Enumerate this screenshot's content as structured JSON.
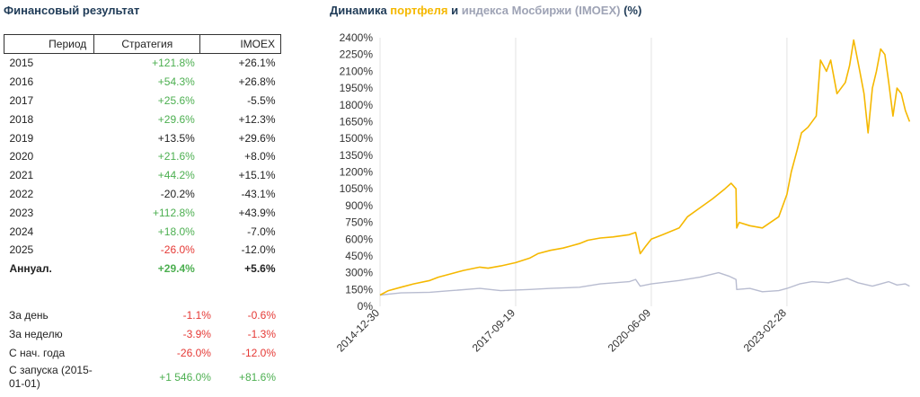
{
  "left_title": "Финансовый результат",
  "table": {
    "headers": [
      "Период",
      "Стратегия",
      "IMOEX"
    ],
    "rows": [
      {
        "period": "2015",
        "strategy": "+121.8%",
        "imoex": "+26.1%",
        "s_color": "pos",
        "i_color": "blk"
      },
      {
        "period": "2016",
        "strategy": "+54.3%",
        "imoex": "+26.8%",
        "s_color": "pos",
        "i_color": "blk"
      },
      {
        "period": "2017",
        "strategy": "+25.6%",
        "imoex": "-5.5%",
        "s_color": "pos",
        "i_color": "blk"
      },
      {
        "period": "2018",
        "strategy": "+29.6%",
        "imoex": "+12.3%",
        "s_color": "pos",
        "i_color": "blk"
      },
      {
        "period": "2019",
        "strategy": "+13.5%",
        "imoex": "+29.6%",
        "s_color": "blk",
        "i_color": "blk"
      },
      {
        "period": "2020",
        "strategy": "+21.6%",
        "imoex": "+8.0%",
        "s_color": "pos",
        "i_color": "blk"
      },
      {
        "period": "2021",
        "strategy": "+44.2%",
        "imoex": "+15.1%",
        "s_color": "pos",
        "i_color": "blk"
      },
      {
        "period": "2022",
        "strategy": "-20.2%",
        "imoex": "-43.1%",
        "s_color": "blk",
        "i_color": "blk"
      },
      {
        "period": "2023",
        "strategy": "+112.8%",
        "imoex": "+43.9%",
        "s_color": "pos",
        "i_color": "blk"
      },
      {
        "period": "2024",
        "strategy": "+18.0%",
        "imoex": "-7.0%",
        "s_color": "pos",
        "i_color": "blk"
      },
      {
        "period": "2025",
        "strategy": "-26.0%",
        "imoex": "-12.0%",
        "s_color": "neg",
        "i_color": "blk"
      },
      {
        "period": "Аннуал.",
        "strategy": "+29.4%",
        "imoex": "+5.6%",
        "s_color": "pos",
        "i_color": "blk",
        "bold": true
      }
    ]
  },
  "stats": [
    {
      "label": "За день",
      "strategy": "-1.1%",
      "imoex": "-0.6%"
    },
    {
      "label": "За неделю",
      "strategy": "-3.9%",
      "imoex": "-1.3%"
    },
    {
      "label": "С нач. года",
      "strategy": "-26.0%",
      "imoex": "-12.0%"
    },
    {
      "label_line1": "С запуска (2015-",
      "label_line2": "01-01)",
      "strategy": "+1 546.0%",
      "imoex": "+81.6%",
      "s_color": "pos",
      "i_color": "pos"
    }
  ],
  "chart_title": {
    "part1": "Динамика ",
    "part2": "портфеля",
    "part3": " и ",
    "part4": "индекса Мосбиржи (IMOEX)",
    "part5": " (%)"
  },
  "chart_data": {
    "type": "line",
    "title": "Динамика портфеля и индекса Мосбиржи (IMOEX) (%)",
    "xlabel": "",
    "ylabel": "",
    "ylim": [
      0,
      2400
    ],
    "y_ticks": [
      "0%",
      "150%",
      "300%",
      "450%",
      "600%",
      "750%",
      "900%",
      "1050%",
      "1200%",
      "1350%",
      "1500%",
      "1650%",
      "1800%",
      "1950%",
      "2100%",
      "2250%",
      "2400%"
    ],
    "x_ticks": [
      "2014-12-30",
      "2017-09-19",
      "2020-06-09",
      "2023-02-28"
    ],
    "x_range": [
      "2014-12-30",
      "2025-09-01"
    ],
    "grid": "vertical",
    "colors": {
      "portfolio": "#f5b800",
      "index": "#b8bcd0"
    },
    "series": [
      {
        "name": "портфеля",
        "points": [
          [
            "2014-12-30",
            100
          ],
          [
            "2015-03-01",
            140
          ],
          [
            "2015-06-01",
            170
          ],
          [
            "2015-09-01",
            200
          ],
          [
            "2015-12-30",
            230
          ],
          [
            "2016-03-01",
            260
          ],
          [
            "2016-06-01",
            290
          ],
          [
            "2016-09-01",
            320
          ],
          [
            "2016-12-30",
            350
          ],
          [
            "2017-03-01",
            340
          ],
          [
            "2017-06-01",
            360
          ],
          [
            "2017-09-19",
            390
          ],
          [
            "2017-12-30",
            430
          ],
          [
            "2018-03-01",
            470
          ],
          [
            "2018-06-01",
            500
          ],
          [
            "2018-09-01",
            520
          ],
          [
            "2018-12-30",
            560
          ],
          [
            "2019-03-01",
            590
          ],
          [
            "2019-06-01",
            610
          ],
          [
            "2019-09-01",
            620
          ],
          [
            "2019-12-30",
            640
          ],
          [
            "2020-02-15",
            660
          ],
          [
            "2020-03-20",
            470
          ],
          [
            "2020-05-01",
            540
          ],
          [
            "2020-06-09",
            600
          ],
          [
            "2020-09-01",
            640
          ],
          [
            "2020-12-30",
            700
          ],
          [
            "2021-03-01",
            800
          ],
          [
            "2021-06-01",
            880
          ],
          [
            "2021-09-01",
            960
          ],
          [
            "2021-12-01",
            1050
          ],
          [
            "2022-01-15",
            1100
          ],
          [
            "2022-02-20",
            1050
          ],
          [
            "2022-02-25",
            700
          ],
          [
            "2022-03-15",
            750
          ],
          [
            "2022-06-01",
            720
          ],
          [
            "2022-09-01",
            700
          ],
          [
            "2022-12-30",
            800
          ],
          [
            "2023-02-28",
            1000
          ],
          [
            "2023-04-01",
            1200
          ],
          [
            "2023-05-15",
            1400
          ],
          [
            "2023-06-15",
            1550
          ],
          [
            "2023-08-01",
            1600
          ],
          [
            "2023-10-01",
            1700
          ],
          [
            "2023-11-01",
            2200
          ],
          [
            "2023-12-15",
            2100
          ],
          [
            "2024-01-15",
            2200
          ],
          [
            "2024-03-01",
            1900
          ],
          [
            "2024-05-01",
            2000
          ],
          [
            "2024-06-01",
            2150
          ],
          [
            "2024-07-01",
            2380
          ],
          [
            "2024-08-15",
            2100
          ],
          [
            "2024-09-15",
            1900
          ],
          [
            "2024-10-15",
            1550
          ],
          [
            "2024-11-15",
            1950
          ],
          [
            "2024-12-15",
            2100
          ],
          [
            "2025-01-15",
            2300
          ],
          [
            "2025-02-15",
            2250
          ],
          [
            "2025-03-15",
            2000
          ],
          [
            "2025-04-15",
            1700
          ],
          [
            "2025-05-15",
            1950
          ],
          [
            "2025-06-15",
            1900
          ],
          [
            "2025-07-15",
            1750
          ],
          [
            "2025-08-15",
            1650
          ]
        ]
      },
      {
        "name": "индекса Мосбиржи (IMOEX)",
        "points": [
          [
            "2014-12-30",
            100
          ],
          [
            "2015-06-01",
            120
          ],
          [
            "2015-12-30",
            125
          ],
          [
            "2016-06-01",
            140
          ],
          [
            "2016-12-30",
            160
          ],
          [
            "2017-06-01",
            140
          ],
          [
            "2017-12-30",
            150
          ],
          [
            "2018-06-01",
            160
          ],
          [
            "2018-12-30",
            170
          ],
          [
            "2019-06-01",
            200
          ],
          [
            "2019-12-30",
            220
          ],
          [
            "2020-02-15",
            240
          ],
          [
            "2020-03-20",
            180
          ],
          [
            "2020-06-09",
            200
          ],
          [
            "2020-12-30",
            230
          ],
          [
            "2021-06-01",
            260
          ],
          [
            "2021-10-15",
            300
          ],
          [
            "2021-12-30",
            270
          ],
          [
            "2022-02-20",
            240
          ],
          [
            "2022-02-25",
            150
          ],
          [
            "2022-06-01",
            160
          ],
          [
            "2022-09-01",
            130
          ],
          [
            "2022-12-30",
            140
          ],
          [
            "2023-02-28",
            160
          ],
          [
            "2023-06-01",
            200
          ],
          [
            "2023-09-01",
            220
          ],
          [
            "2023-12-30",
            210
          ],
          [
            "2024-05-15",
            250
          ],
          [
            "2024-08-01",
            210
          ],
          [
            "2024-11-15",
            180
          ],
          [
            "2025-01-15",
            200
          ],
          [
            "2025-03-15",
            220
          ],
          [
            "2025-05-15",
            190
          ],
          [
            "2025-07-15",
            200
          ],
          [
            "2025-08-15",
            180
          ]
        ]
      }
    ]
  }
}
